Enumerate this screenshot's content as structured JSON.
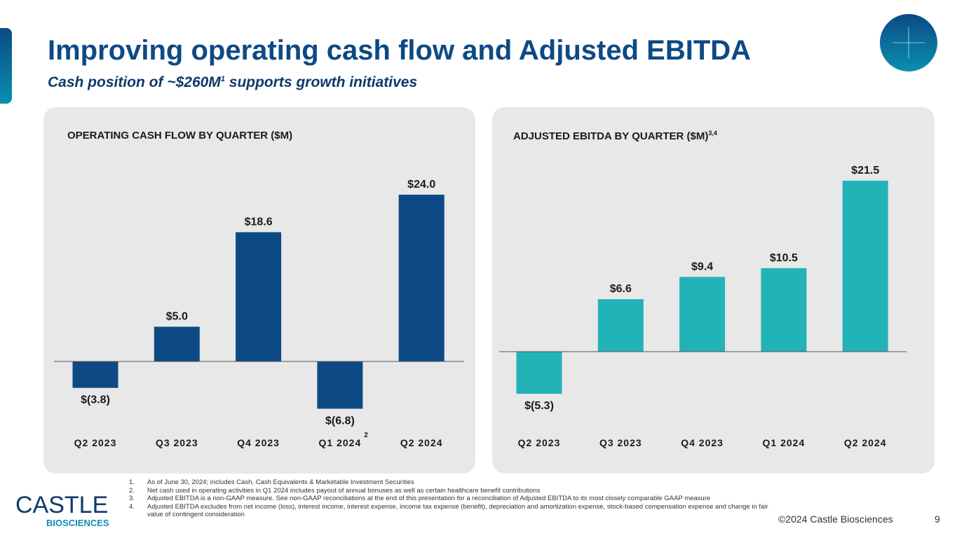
{
  "title": "Improving operating cash flow and Adjusted EBITDA",
  "subtitle": "Cash position of ~$260M",
  "subtitle_sup": "1",
  "colors": {
    "ocf": "#0d4a85",
    "ebitda": "#22b3b8"
  },
  "chart_data": [
    {
      "type": "bar",
      "title": "OPERATING CASH FLOW BY QUARTER ($M)",
      "categories": [
        "Q2 2023",
        "Q3 2023",
        "Q4 2023",
        "Q1 2024",
        "Q2 2024"
      ],
      "category_notes": [
        "",
        "",
        "",
        "2",
        ""
      ],
      "values": [
        -3.8,
        5.0,
        18.6,
        -6.8,
        24.0
      ],
      "labels": [
        "$(3.8)",
        "$5.0",
        "$18.6",
        "$(6.8)",
        "$24.0"
      ]
    },
    {
      "type": "bar",
      "title": "ADJUSTED EBITDA BY QUARTER ($M)",
      "title_sup": "3,4",
      "categories": [
        "Q2 2023",
        "Q3 2023",
        "Q4 2023",
        "Q1 2024",
        "Q2 2024"
      ],
      "values": [
        -5.3,
        6.6,
        9.4,
        10.5,
        21.5
      ],
      "labels": [
        "$(5.3)",
        "$6.6",
        "$9.4",
        "$10.5",
        "$21.5"
      ]
    }
  ],
  "subtitle_rest": " supports growth initiatives",
  "footnotes": [
    {
      "n": "1.",
      "text": "As of June 30, 2024; includes Cash, Cash Equivalents & Marketable Investment Securities"
    },
    {
      "n": "2.",
      "text": "Net cash used in operating activities in Q1 2024 includes payout of annual bonuses as well as certain healthcare benefit contributions"
    },
    {
      "n": "3.",
      "text": "Adjusted EBITDA is a non-GAAP measure. See non-GAAP reconciliations at the end of this presentation for a reconciliation of Adjusted EBITDA to its most closely comparable GAAP measure"
    },
    {
      "n": "4.",
      "text": "Adjusted EBITDA excludes from net income (loss), interest income, interest expense, income tax expense (benefit), depreciation and amortization expense, stock-based compensation expense and change in fair value of contingent consideration"
    }
  ],
  "logo": {
    "name": "CASTLE",
    "sub": "BIOSCIENCES"
  },
  "copyright": "©2024 Castle Biosciences",
  "page_number": "9"
}
